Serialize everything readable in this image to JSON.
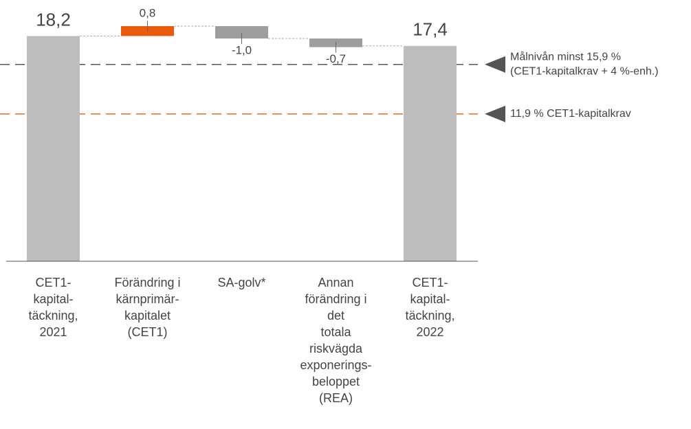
{
  "chart_data": {
    "type": "waterfall",
    "categories": [
      [
        "CET1-",
        "kapital-",
        "täckning,",
        "2021"
      ],
      [
        "Förändring i",
        "kärnprimär-",
        "kapitalet",
        "(CET1)"
      ],
      [
        "SA-golv*"
      ],
      [
        "Annan",
        "förändring i",
        "det",
        "totala",
        "riskvägda",
        "exponerings-",
        "beloppet",
        "(REA)"
      ],
      [
        "CET1-",
        "kapital-",
        "täckning,",
        "2022"
      ]
    ],
    "values": [
      18.2,
      0.8,
      -1.0,
      -0.7,
      17.4
    ],
    "value_labels": [
      "18,2",
      "0,8",
      "-1,0",
      "-0,7",
      "17,4"
    ],
    "kinds": [
      "total",
      "delta",
      "delta",
      "delta",
      "total"
    ],
    "colors": {
      "total": "#bdbdbd",
      "increase": "#e85a0c",
      "decrease": "#9e9e9e"
    },
    "ylim": [
      0,
      20
    ],
    "reference_lines": [
      {
        "value": 15.9,
        "color": "#555555",
        "labels": [
          "Målnivån minst 15,9 %",
          "(CET1-kapitalkrav + 4 %-enh.)"
        ]
      },
      {
        "value": 11.9,
        "color": "#e06a2c",
        "labels": [
          "11,9 % CET1-kapitalkrav"
        ]
      }
    ]
  }
}
